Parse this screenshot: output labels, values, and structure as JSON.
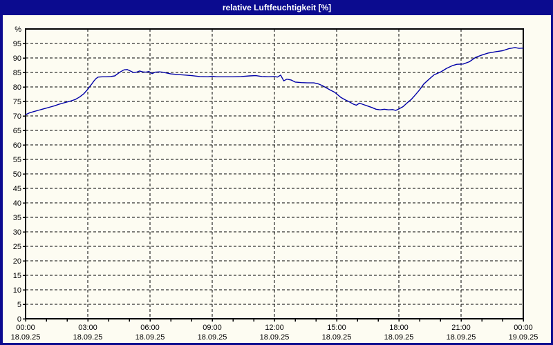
{
  "window": {
    "title": "relative Luftfeuchtigkeit [%]"
  },
  "colors": {
    "titlebar": "#0b0b8f",
    "border": "#0b0b8f",
    "title_text": "#ffffff",
    "background": "#fdfcf2",
    "grid": "#000000",
    "axis": "#000000",
    "text": "#000000",
    "line": "#0000a8"
  },
  "chart_data": {
    "type": "line",
    "title": "relative Luftfeuchtigkeit [%]",
    "ylabel": "%",
    "xlabel": "",
    "ylim": [
      0,
      100
    ],
    "yticks": [
      0,
      5,
      10,
      15,
      20,
      25,
      30,
      35,
      40,
      45,
      50,
      55,
      60,
      65,
      70,
      75,
      80,
      85,
      90,
      95
    ],
    "grid": "dashed",
    "legend_position": "none",
    "x_axis": {
      "unit": "hours",
      "range": [
        0,
        24
      ],
      "minor_tick_every_hours": 1,
      "major_ticks": [
        {
          "hour": 0,
          "time": "00:00",
          "date": "18.09.25"
        },
        {
          "hour": 3,
          "time": "03:00",
          "date": "18.09.25"
        },
        {
          "hour": 6,
          "time": "06:00",
          "date": "18.09.25"
        },
        {
          "hour": 9,
          "time": "09:00",
          "date": "18.09.25"
        },
        {
          "hour": 12,
          "time": "12:00",
          "date": "18.09.25"
        },
        {
          "hour": 15,
          "time": "15:00",
          "date": "18.09.25"
        },
        {
          "hour": 18,
          "time": "18:00",
          "date": "18.09.25"
        },
        {
          "hour": 21,
          "time": "21:00",
          "date": "18.09.25"
        },
        {
          "hour": 24,
          "time": "00:00",
          "date": "19.09.25"
        }
      ]
    },
    "series": [
      {
        "name": "relative Luftfeuchtigkeit",
        "color": "#0000a8",
        "points": [
          [
            0,
            70.4
          ],
          [
            0.2,
            71.1
          ],
          [
            0.4,
            71.5
          ],
          [
            0.6,
            71.9
          ],
          [
            0.8,
            72.3
          ],
          [
            1,
            72.7
          ],
          [
            1.2,
            73.1
          ],
          [
            1.4,
            73.5
          ],
          [
            1.6,
            74
          ],
          [
            1.8,
            74.4
          ],
          [
            2,
            74.8
          ],
          [
            2.2,
            75.2
          ],
          [
            2.4,
            75.7
          ],
          [
            2.6,
            76.5
          ],
          [
            2.8,
            77.6
          ],
          [
            3,
            79.2
          ],
          [
            3.1,
            80.2
          ],
          [
            3.2,
            81.1
          ],
          [
            3.3,
            82.1
          ],
          [
            3.4,
            82.9
          ],
          [
            3.5,
            83.4
          ],
          [
            3.7,
            83.5
          ],
          [
            3.9,
            83.5
          ],
          [
            4.1,
            83.6
          ],
          [
            4.3,
            83.8
          ],
          [
            4.45,
            84.6
          ],
          [
            4.6,
            85.3
          ],
          [
            4.75,
            85.9
          ],
          [
            4.9,
            86
          ],
          [
            5.05,
            85.5
          ],
          [
            5.2,
            85
          ],
          [
            5.35,
            85.1
          ],
          [
            5.5,
            85.5
          ],
          [
            5.65,
            85.2
          ],
          [
            5.8,
            85.1
          ],
          [
            5.95,
            85.3
          ],
          [
            6.1,
            84.6
          ],
          [
            6.25,
            85.1
          ],
          [
            6.45,
            85.2
          ],
          [
            6.6,
            85.1
          ],
          [
            6.8,
            84.8
          ],
          [
            7,
            84.5
          ],
          [
            7.3,
            84.3
          ],
          [
            7.7,
            84.1
          ],
          [
            8,
            83.9
          ],
          [
            8.4,
            83.6
          ],
          [
            8.8,
            83.5
          ],
          [
            9,
            83.7
          ],
          [
            9.2,
            83.5
          ],
          [
            9.6,
            83.5
          ],
          [
            10,
            83.5
          ],
          [
            10.4,
            83.6
          ],
          [
            10.8,
            83.8
          ],
          [
            11.1,
            83.9
          ],
          [
            11.4,
            83.6
          ],
          [
            11.7,
            83.5
          ],
          [
            12,
            83.6
          ],
          [
            12.15,
            83.4
          ],
          [
            12.3,
            84.1
          ],
          [
            12.45,
            82.1
          ],
          [
            12.6,
            82.7
          ],
          [
            12.8,
            82.4
          ],
          [
            13,
            81.7
          ],
          [
            13.3,
            81.5
          ],
          [
            13.6,
            81.4
          ],
          [
            13.9,
            81.4
          ],
          [
            14.1,
            81.1
          ],
          [
            14.3,
            80.5
          ],
          [
            14.5,
            79.7
          ],
          [
            14.7,
            78.9
          ],
          [
            14.9,
            78.2
          ],
          [
            15,
            77.6
          ],
          [
            15.2,
            76.4
          ],
          [
            15.4,
            75.6
          ],
          [
            15.6,
            74.9
          ],
          [
            15.8,
            74.1
          ],
          [
            15.95,
            73.7
          ],
          [
            16.1,
            74.4
          ],
          [
            16.3,
            73.9
          ],
          [
            16.5,
            73.4
          ],
          [
            16.7,
            72.9
          ],
          [
            16.9,
            72.3
          ],
          [
            17.1,
            72.1
          ],
          [
            17.3,
            72.3
          ],
          [
            17.5,
            72.1
          ],
          [
            17.7,
            72.2
          ],
          [
            17.85,
            71.9
          ],
          [
            18,
            72.4
          ],
          [
            18.2,
            73.2
          ],
          [
            18.4,
            74.5
          ],
          [
            18.6,
            75.7
          ],
          [
            18.8,
            77.3
          ],
          [
            19,
            79
          ],
          [
            19.2,
            81
          ],
          [
            19.4,
            82.3
          ],
          [
            19.7,
            84.2
          ],
          [
            20,
            85.1
          ],
          [
            20.3,
            86.4
          ],
          [
            20.6,
            87.4
          ],
          [
            20.8,
            87.8
          ],
          [
            21.1,
            87.9
          ],
          [
            21.4,
            88.7
          ],
          [
            21.7,
            90.2
          ],
          [
            22,
            91
          ],
          [
            22.3,
            91.7
          ],
          [
            22.7,
            92.2
          ],
          [
            23,
            92.5
          ],
          [
            23.3,
            93.2
          ],
          [
            23.6,
            93.6
          ],
          [
            23.8,
            93.3
          ],
          [
            24,
            93.4
          ]
        ]
      }
    ]
  }
}
